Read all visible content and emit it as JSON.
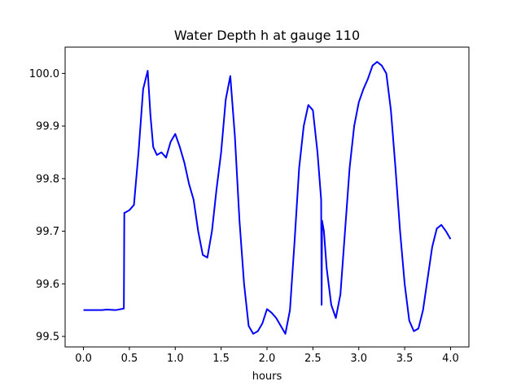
{
  "chart_data": {
    "type": "line",
    "title": "Water Depth h at gauge 110",
    "xlabel": "hours",
    "ylabel": "",
    "xlim": [
      -0.2,
      4.2
    ],
    "ylim": [
      99.48,
      100.05
    ],
    "xticks": [
      0.0,
      0.5,
      1.0,
      1.5,
      2.0,
      2.5,
      3.0,
      3.5,
      4.0
    ],
    "xtick_labels": [
      "0.0",
      "0.5",
      "1.0",
      "1.5",
      "2.0",
      "2.5",
      "3.0",
      "3.5",
      "4.0"
    ],
    "yticks": [
      99.5,
      99.6,
      99.7,
      99.8,
      99.9,
      100.0
    ],
    "ytick_labels": [
      "99.5",
      "99.6",
      "99.7",
      "99.8",
      "99.9",
      "100.0"
    ],
    "grid": false,
    "series": [
      {
        "name": "",
        "color": "#0000ff",
        "x": [
          0.0,
          0.2,
          0.25,
          0.35,
          0.44,
          0.445,
          0.45,
          0.5,
          0.55,
          0.6,
          0.65,
          0.7,
          0.73,
          0.76,
          0.8,
          0.85,
          0.9,
          0.95,
          1.0,
          1.05,
          1.1,
          1.15,
          1.2,
          1.25,
          1.3,
          1.35,
          1.4,
          1.45,
          1.5,
          1.55,
          1.6,
          1.65,
          1.7,
          1.75,
          1.8,
          1.85,
          1.9,
          1.95,
          2.0,
          2.05,
          2.1,
          2.15,
          2.2,
          2.25,
          2.3,
          2.35,
          2.4,
          2.45,
          2.5,
          2.55,
          2.59,
          2.595,
          2.6,
          2.62,
          2.65,
          2.7,
          2.75,
          2.8,
          2.85,
          2.9,
          2.95,
          3.0,
          3.05,
          3.1,
          3.15,
          3.2,
          3.25,
          3.3,
          3.35,
          3.4,
          3.45,
          3.5,
          3.55,
          3.6,
          3.65,
          3.7,
          3.75,
          3.8,
          3.85,
          3.9,
          3.95,
          4.0
        ],
        "y": [
          99.55,
          99.55,
          99.551,
          99.55,
          99.553,
          99.735,
          99.735,
          99.74,
          99.75,
          99.85,
          99.97,
          100.005,
          99.92,
          99.86,
          99.845,
          99.85,
          99.84,
          99.87,
          99.885,
          99.86,
          99.83,
          99.79,
          99.76,
          99.7,
          99.655,
          99.65,
          99.7,
          99.78,
          99.85,
          99.95,
          99.995,
          99.88,
          99.72,
          99.6,
          99.52,
          99.505,
          99.51,
          99.525,
          99.552,
          99.545,
          99.535,
          99.52,
          99.505,
          99.55,
          99.68,
          99.82,
          99.9,
          99.94,
          99.93,
          99.85,
          99.76,
          99.56,
          99.72,
          99.7,
          99.63,
          99.56,
          99.535,
          99.58,
          99.7,
          99.82,
          99.9,
          99.945,
          99.97,
          99.99,
          100.015,
          100.022,
          100.015,
          100.0,
          99.93,
          99.82,
          99.7,
          99.6,
          99.53,
          99.51,
          99.515,
          99.55,
          99.61,
          99.67,
          99.705,
          99.712,
          99.7,
          99.685
        ]
      }
    ]
  }
}
